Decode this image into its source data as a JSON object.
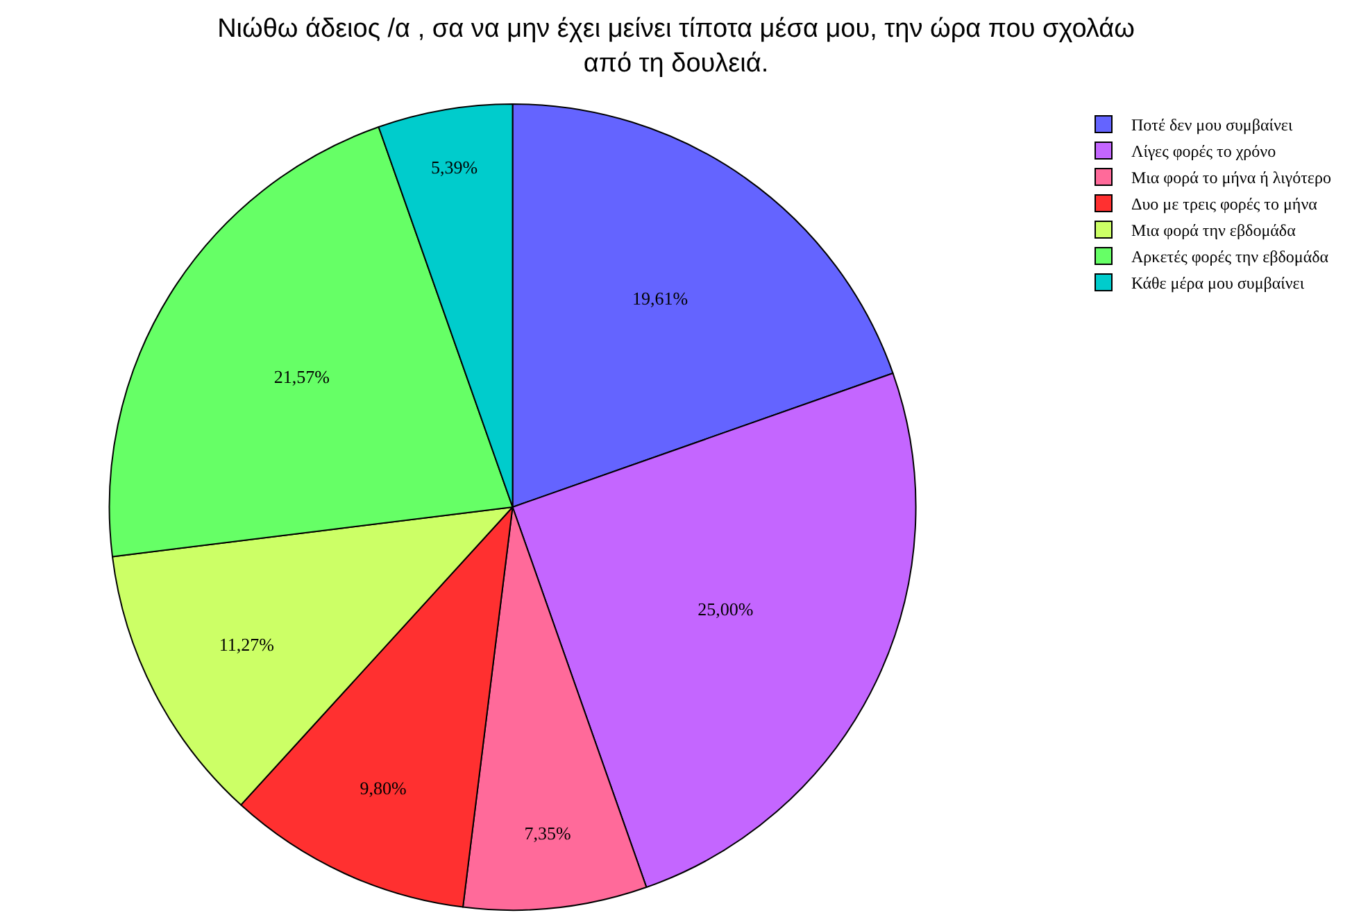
{
  "chart_data": {
    "type": "pie",
    "title": "Νιώθω άδειος /α , σα να μην έχει μείνει τίποτα μέσα μου, την ώρα που σχολάω\nαπό τη δουλειά.",
    "categories": [
      "Ποτέ δεν μου συμβαίνει",
      "Λίγες φορές το χρόνο",
      "Μια φορά το μήνα ή λιγότερο",
      "Δυο με τρεις φορές το μήνα",
      "Μια φορά την εβδομάδα",
      "Αρκετές φορές την εβδομάδα",
      "Κάθε μέρα μου συμβαίνει"
    ],
    "values": [
      19.61,
      25.0,
      7.35,
      9.8,
      11.27,
      21.57,
      5.39
    ],
    "value_labels": [
      "19,61%",
      "25,00%",
      "7,35%",
      "9,80%",
      "11,27%",
      "21,57%",
      "5,39%"
    ],
    "colors": [
      "#6464ff",
      "#c466ff",
      "#ff6a9a",
      "#ff3030",
      "#ccff66",
      "#66ff66",
      "#00cccc"
    ],
    "legend": "top right"
  }
}
